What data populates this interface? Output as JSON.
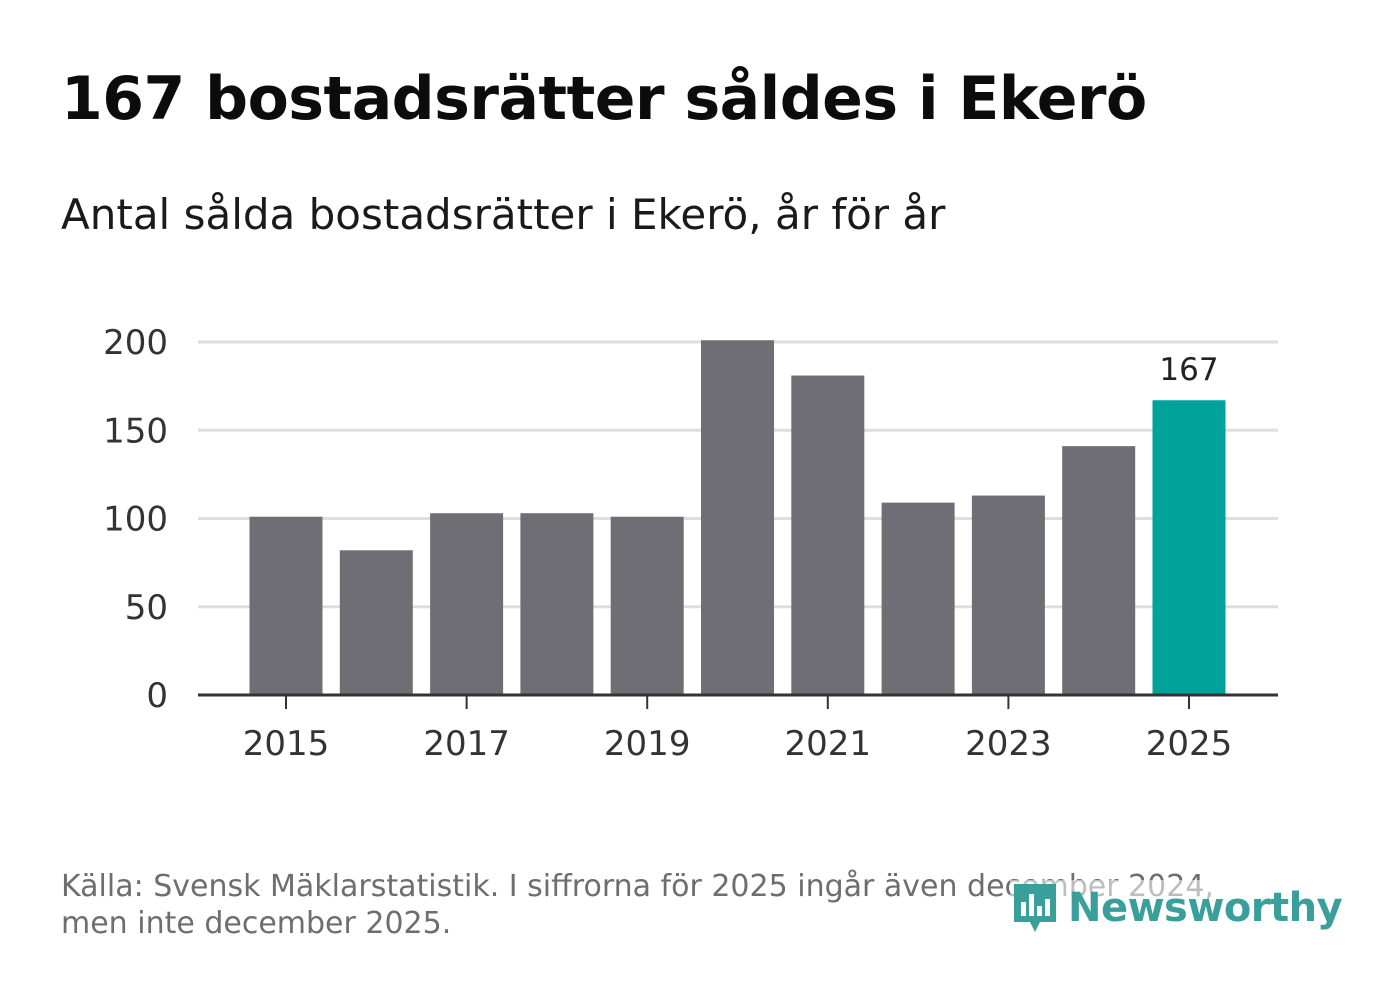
{
  "header": {
    "title": "167 bostadsrätter såldes i Ekerö",
    "subtitle": "Antal sålda bostadsrätter i Ekerö, år för år"
  },
  "footer": {
    "source_line1": "Källa: Svensk Mäklarstatistik. I siffrorna för 2025 ingår även december 2024,",
    "source_line2": "men inte december 2025.",
    "logo_text": "Newsworthy"
  },
  "colors": {
    "bar": "#6f6e74",
    "highlight": "#00a39a",
    "grid": "#dedede",
    "axis": "#333333",
    "logo": "#3a9f9b"
  },
  "chart_data": {
    "type": "bar",
    "title": "167 bostadsrätter såldes i Ekerö",
    "subtitle": "Antal sålda bostadsrätter i Ekerö, år för år",
    "xlabel": "",
    "ylabel": "",
    "categories": [
      "2015",
      "2016",
      "2017",
      "2018",
      "2019",
      "2020",
      "2021",
      "2022",
      "2023",
      "2024",
      "2025"
    ],
    "values": [
      101,
      82,
      103,
      103,
      101,
      201,
      181,
      109,
      113,
      141,
      167
    ],
    "highlight_index": 10,
    "highlight_label": "167",
    "ylim": [
      0,
      200
    ],
    "yticks": [
      "0",
      "50",
      "100",
      "150",
      "200"
    ],
    "xticks": [
      "2015",
      "2017",
      "2019",
      "2021",
      "2023",
      "2025"
    ],
    "grid": true
  }
}
